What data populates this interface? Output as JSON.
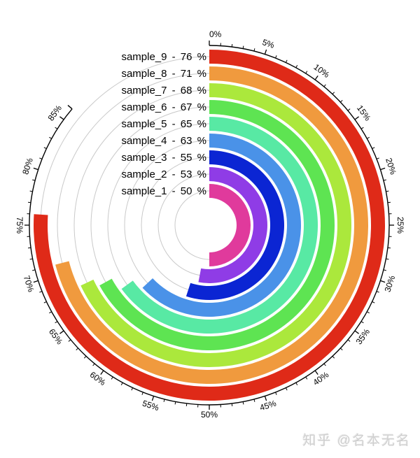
{
  "watermark": "知乎 @名本无名",
  "style": {
    "background": "#ffffff",
    "axis_color": "#000000",
    "grid_color": "#c9c9c9",
    "text_color": "#000000",
    "watermark_color": "#cfcfcf"
  },
  "chart_data": {
    "type": "radial-bar",
    "title": "",
    "unit": "%",
    "direction": "clockwise",
    "start_at": "top",
    "axis": {
      "min": 0,
      "max": 100,
      "major_tick_step": 5,
      "minor_tick_step": 1,
      "axis_arc_end": 86.2,
      "tick_labels": [
        "0%",
        "5%",
        "10%",
        "15%",
        "20%",
        "25%",
        "30%",
        "35%",
        "40%",
        "45%",
        "50%",
        "55%",
        "60%",
        "65%",
        "70%",
        "75%",
        "80%",
        "85%"
      ]
    },
    "grid": true,
    "categories": [
      "sample_1",
      "sample_2",
      "sample_3",
      "sample_4",
      "sample_5",
      "sample_6",
      "sample_7",
      "sample_8",
      "sample_9"
    ],
    "values": [
      50,
      53,
      55,
      63,
      65,
      67,
      68,
      71,
      76
    ],
    "series": [
      {
        "name": "sample_1",
        "value": 50,
        "label": "sample_1 - 50 %",
        "color": "#e03a9c"
      },
      {
        "name": "sample_2",
        "value": 53,
        "label": "sample_2 - 53 %",
        "color": "#8f3ce6"
      },
      {
        "name": "sample_3",
        "value": 55,
        "label": "sample_3 - 55 %",
        "color": "#0b25d3"
      },
      {
        "name": "sample_4",
        "value": 63,
        "label": "sample_4 - 63 %",
        "color": "#4a92e8"
      },
      {
        "name": "sample_5",
        "value": 65,
        "label": "sample_5 - 65 %",
        "color": "#58e9a4"
      },
      {
        "name": "sample_6",
        "value": 67,
        "label": "sample_6 - 67 %",
        "color": "#5ee452"
      },
      {
        "name": "sample_7",
        "value": 68,
        "label": "sample_7 - 68 %",
        "color": "#abe83c"
      },
      {
        "name": "sample_8",
        "value": 71,
        "label": "sample_8 - 71 %",
        "color": "#f09a3e"
      },
      {
        "name": "sample_9",
        "value": 76,
        "label": "sample_9 - 76 %",
        "color": "#df2a18"
      }
    ]
  }
}
